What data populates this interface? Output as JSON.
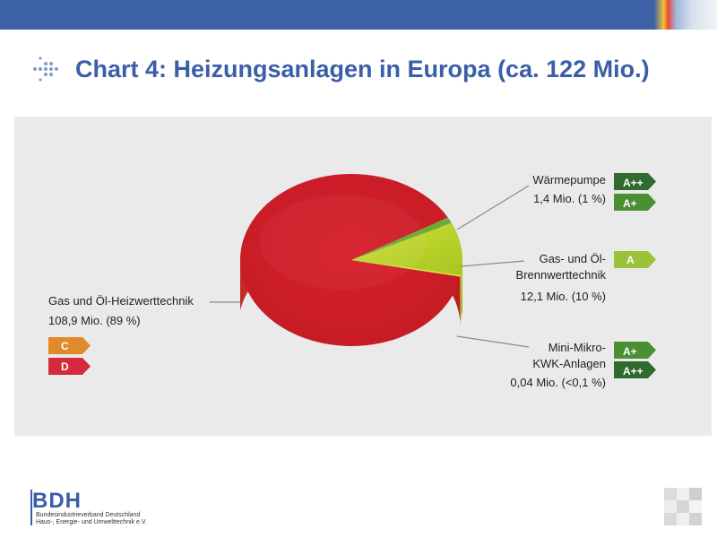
{
  "title": "Chart 4: Heizungsanlagen in Europa (ca. 122 Mio.)",
  "colors": {
    "accent": "#3a5ea8",
    "fossil_red": "#d42a2a",
    "condensing_green": "#b8d22e",
    "heatpump_green": "#6aab3a",
    "label_dark_green": "#2f6b2e",
    "label_mid_green": "#4a8f33",
    "label_light_green": "#9cc13a",
    "label_orange": "#e08a2a",
    "label_red": "#d42a3a"
  },
  "chart_data": {
    "type": "pie",
    "slices": [
      {
        "label_line1": "Gas und Öl-Heizwerttechnik",
        "label_line2": "108,9 Mio. (89 %)",
        "value": 108.9,
        "percent": 89,
        "color": "#d42a2a",
        "efficiency_labels": [
          "C",
          "D"
        ]
      },
      {
        "label_line1": "Wärmepumpe",
        "label_line2": "1,4 Mio. (1 %)",
        "value": 1.4,
        "percent": 1,
        "color": "#6aab3a",
        "efficiency_labels": [
          "A++",
          "A+"
        ]
      },
      {
        "label_line1": "Gas- und Öl-",
        "label_line1b": "Brennwerttechnik",
        "label_line2": "12,1 Mio. (10 %)",
        "value": 12.1,
        "percent": 10,
        "color": "#b8d22e",
        "efficiency_labels": [
          "A"
        ]
      },
      {
        "label_line1": "Mini-Mikro-",
        "label_line1b": "KWK-Anlagen",
        "label_line2": "0,04 Mio. (<0,1 %)",
        "value": 0.04,
        "percent": 0.03,
        "color": "#d8e84a",
        "efficiency_labels": [
          "A+",
          "A++"
        ]
      }
    ]
  },
  "logo": {
    "name": "BDH",
    "subtitle_line1": "Bundesindustrieverband Deutschland",
    "subtitle_line2": "Haus-, Energie- und Umwelttechnik e.V."
  }
}
